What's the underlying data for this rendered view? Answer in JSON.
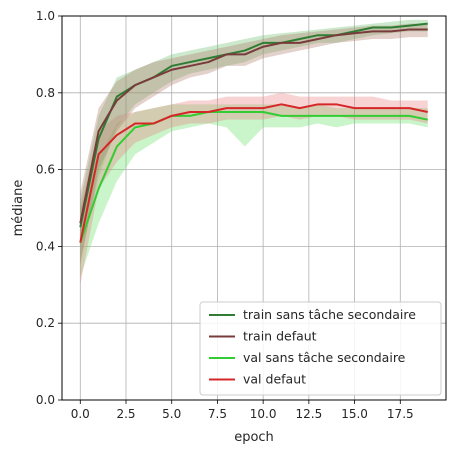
{
  "chart_data": {
    "type": "line",
    "xlabel": "epoch",
    "ylabel": "médiane",
    "xlim": [
      -1,
      20
    ],
    "ylim": [
      0.0,
      1.0
    ],
    "x_ticks": [
      0.0,
      2.5,
      5.0,
      7.5,
      10.0,
      12.5,
      15.0,
      17.5
    ],
    "x_tick_labels": [
      "0.0",
      "2.5",
      "5.0",
      "7.5",
      "10.0",
      "12.5",
      "15.0",
      "17.5"
    ],
    "y_ticks": [
      0.0,
      0.2,
      0.4,
      0.6,
      0.8,
      1.0
    ],
    "y_tick_labels": [
      "0.0",
      "0.2",
      "0.4",
      "0.6",
      "0.8",
      "1.0"
    ],
    "grid": true,
    "legend_position": "lower-right",
    "x": [
      0,
      1,
      2,
      3,
      4,
      5,
      6,
      7,
      8,
      9,
      10,
      11,
      12,
      13,
      14,
      15,
      16,
      17,
      18,
      19
    ],
    "series": [
      {
        "name": "train sans tâche secondaire",
        "color": "#2e7d32",
        "band_color": "#6fbf6f",
        "values": [
          0.45,
          0.68,
          0.79,
          0.82,
          0.84,
          0.87,
          0.88,
          0.89,
          0.9,
          0.91,
          0.93,
          0.93,
          0.94,
          0.95,
          0.95,
          0.96,
          0.97,
          0.97,
          0.975,
          0.98
        ],
        "lower": [
          0.36,
          0.58,
          0.71,
          0.77,
          0.8,
          0.83,
          0.85,
          0.86,
          0.87,
          0.88,
          0.9,
          0.91,
          0.92,
          0.93,
          0.93,
          0.94,
          0.95,
          0.955,
          0.96,
          0.96
        ],
        "upper": [
          0.52,
          0.74,
          0.84,
          0.86,
          0.88,
          0.9,
          0.91,
          0.92,
          0.93,
          0.94,
          0.95,
          0.955,
          0.96,
          0.965,
          0.97,
          0.975,
          0.98,
          0.985,
          0.99,
          0.99
        ]
      },
      {
        "name": "train defaut",
        "color": "#7a3b3b",
        "band_color": "#b07a6a",
        "values": [
          0.46,
          0.7,
          0.78,
          0.82,
          0.84,
          0.86,
          0.87,
          0.88,
          0.9,
          0.9,
          0.92,
          0.93,
          0.93,
          0.94,
          0.95,
          0.955,
          0.96,
          0.96,
          0.965,
          0.965
        ],
        "lower": [
          0.35,
          0.6,
          0.7,
          0.76,
          0.79,
          0.82,
          0.84,
          0.85,
          0.87,
          0.87,
          0.89,
          0.9,
          0.91,
          0.92,
          0.93,
          0.935,
          0.94,
          0.94,
          0.945,
          0.945
        ],
        "upper": [
          0.54,
          0.76,
          0.83,
          0.86,
          0.88,
          0.89,
          0.9,
          0.91,
          0.92,
          0.93,
          0.94,
          0.95,
          0.955,
          0.96,
          0.965,
          0.97,
          0.975,
          0.975,
          0.98,
          0.98
        ]
      },
      {
        "name": "val sans tâche secondaire",
        "color": "#33cc33",
        "band_color": "#66e066",
        "values": [
          0.41,
          0.55,
          0.66,
          0.71,
          0.72,
          0.74,
          0.74,
          0.75,
          0.75,
          0.75,
          0.75,
          0.74,
          0.74,
          0.74,
          0.74,
          0.74,
          0.74,
          0.74,
          0.74,
          0.73
        ],
        "lower": [
          0.32,
          0.46,
          0.57,
          0.64,
          0.67,
          0.7,
          0.71,
          0.72,
          0.71,
          0.66,
          0.71,
          0.71,
          0.71,
          0.72,
          0.71,
          0.72,
          0.72,
          0.72,
          0.72,
          0.71
        ],
        "upper": [
          0.5,
          0.63,
          0.72,
          0.75,
          0.76,
          0.77,
          0.77,
          0.77,
          0.77,
          0.77,
          0.77,
          0.77,
          0.76,
          0.77,
          0.76,
          0.76,
          0.76,
          0.76,
          0.76,
          0.76
        ]
      },
      {
        "name": "val defaut",
        "color": "#d62728",
        "band_color": "#e88080",
        "values": [
          0.41,
          0.64,
          0.69,
          0.72,
          0.72,
          0.74,
          0.75,
          0.75,
          0.76,
          0.76,
          0.76,
          0.77,
          0.76,
          0.77,
          0.77,
          0.76,
          0.76,
          0.76,
          0.76,
          0.75
        ],
        "lower": [
          0.3,
          0.55,
          0.62,
          0.67,
          0.69,
          0.71,
          0.72,
          0.72,
          0.73,
          0.73,
          0.73,
          0.74,
          0.73,
          0.74,
          0.74,
          0.73,
          0.73,
          0.73,
          0.73,
          0.72
        ],
        "upper": [
          0.5,
          0.7,
          0.74,
          0.75,
          0.76,
          0.77,
          0.78,
          0.78,
          0.79,
          0.79,
          0.79,
          0.8,
          0.79,
          0.79,
          0.79,
          0.79,
          0.79,
          0.78,
          0.78,
          0.78
        ]
      }
    ]
  }
}
